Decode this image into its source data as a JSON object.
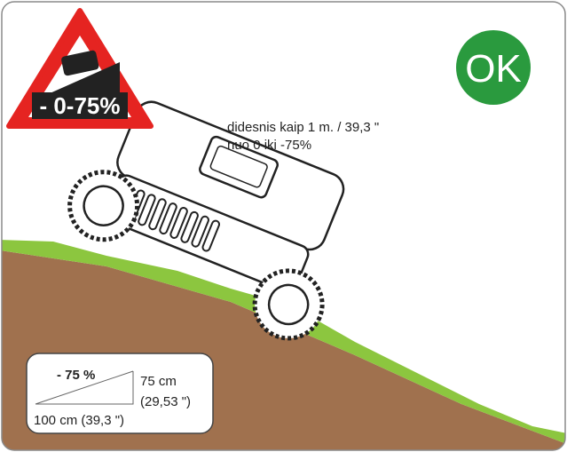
{
  "warning_sign": {
    "label": "- 0-75%"
  },
  "status_badge": {
    "label": "OK"
  },
  "description": {
    "lines": [
      "didesnis kaip 1 m. / 39,3 \"",
      "nuo 0 iki -75%"
    ]
  },
  "slope_box": {
    "title": "- 75 %",
    "height_label": "75 cm",
    "height_inches": "(29,53 \")",
    "base_label": "100 cm (39,3 \")"
  }
}
